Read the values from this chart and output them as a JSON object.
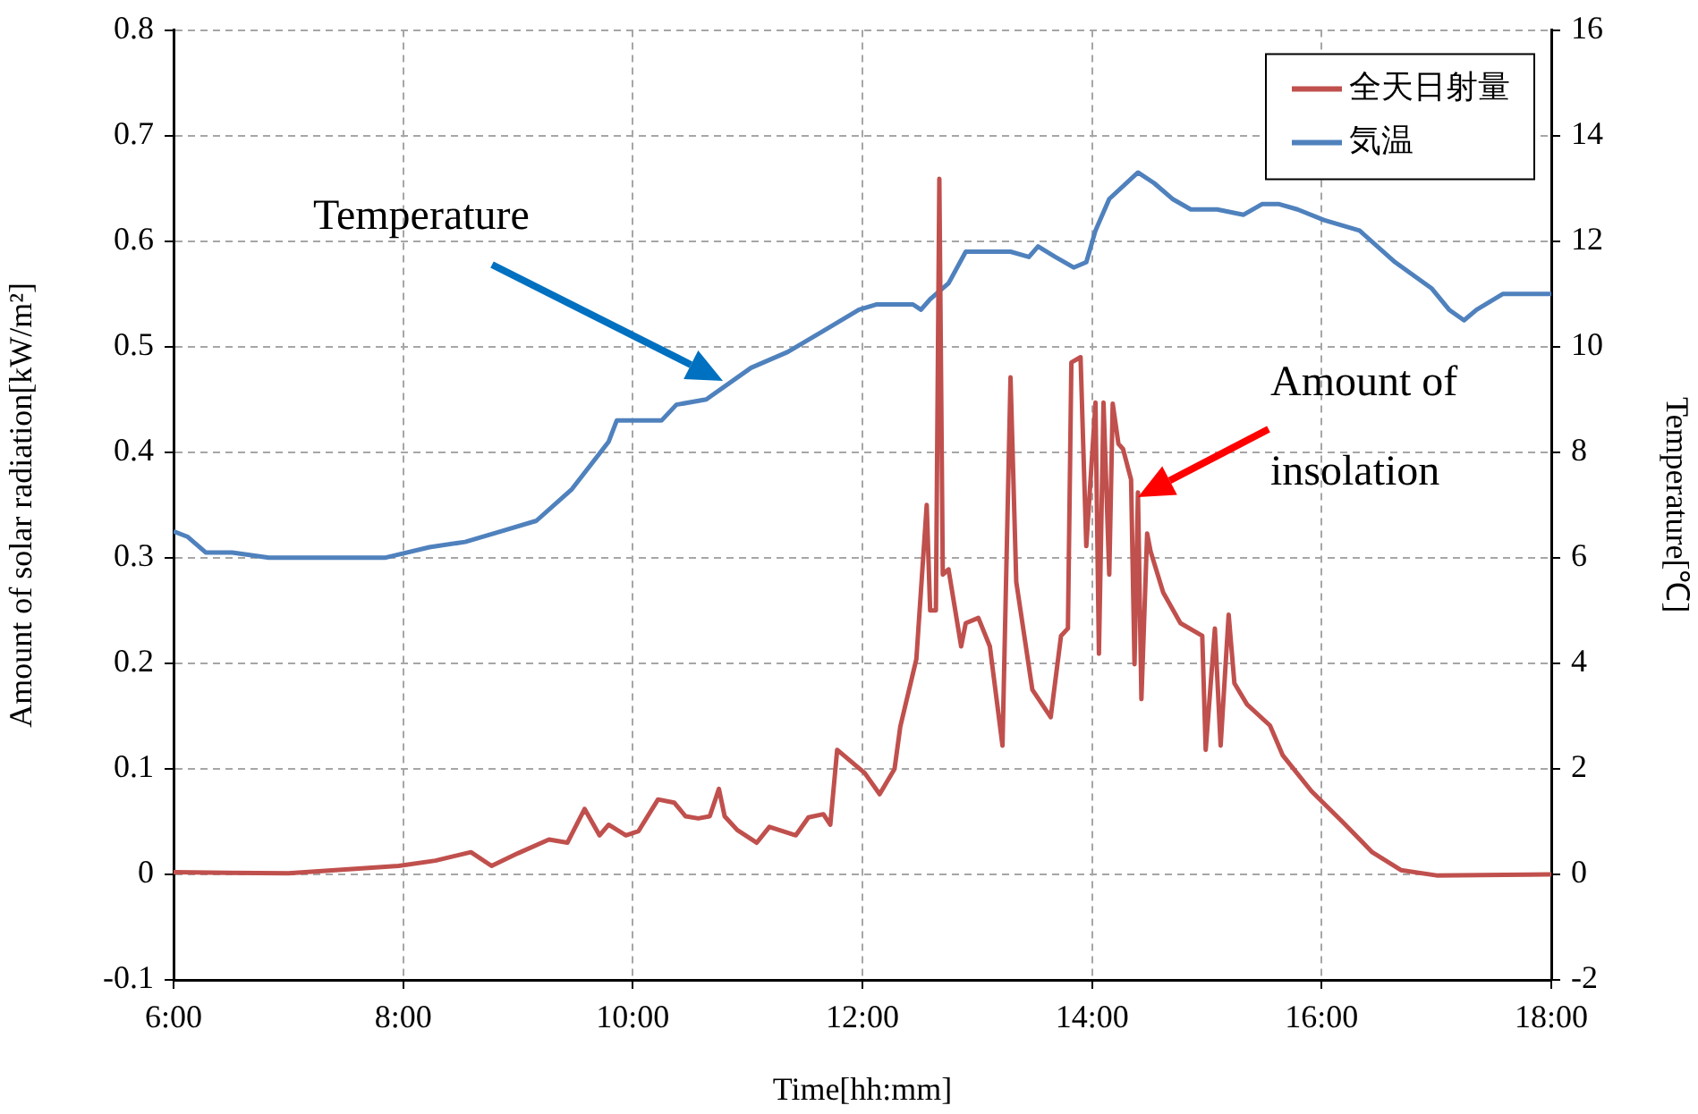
{
  "chart_data": {
    "type": "line",
    "xlabel": "Time[hh:mm]",
    "ylabel": "Amount of solar radiation[kW/m²]",
    "y2label": "Temperature[℃]",
    "xlim": [
      6,
      18
    ],
    "xticks": [
      {
        "value": 6,
        "label": "6:00"
      },
      {
        "value": 8,
        "label": "8:00"
      },
      {
        "value": 10,
        "label": "10:00"
      },
      {
        "value": 12,
        "label": "12:00"
      },
      {
        "value": 14,
        "label": "14:00"
      },
      {
        "value": 16,
        "label": "16:00"
      },
      {
        "value": 18,
        "label": "18:00"
      }
    ],
    "ylim": [
      -0.1,
      0.8
    ],
    "yticks": [
      -0.1,
      0,
      0.1,
      0.2,
      0.3,
      0.4,
      0.5,
      0.6,
      0.7,
      0.8
    ],
    "y2lim": [
      -2,
      16
    ],
    "y2ticks": [
      -2,
      0,
      2,
      4,
      6,
      8,
      10,
      12,
      14,
      16
    ],
    "grid": true,
    "legend": "top right",
    "marker": "none",
    "line_style": "solid",
    "series": [
      {
        "name": "全天日射量",
        "color": "#c0504d",
        "x": [
          6.0,
          7.0,
          7.96,
          8.28,
          8.59,
          8.77,
          9.0,
          9.27,
          9.43,
          9.58,
          9.71,
          9.79,
          9.94,
          10.05,
          10.22,
          10.36,
          10.46,
          10.57,
          10.67,
          10.75,
          10.8,
          10.91,
          11.08,
          11.19,
          11.42,
          11.53,
          11.66,
          11.72,
          11.78,
          12.02,
          12.15,
          12.28,
          12.33,
          12.47,
          12.56,
          12.59,
          12.64,
          12.67,
          12.7,
          12.75,
          12.86,
          12.9,
          13.01,
          13.11,
          13.22,
          13.29,
          13.34,
          13.48,
          13.64,
          13.73,
          13.79,
          13.82,
          13.9,
          13.95,
          14.03,
          14.06,
          14.1,
          14.15,
          14.18,
          14.23,
          14.27,
          14.34,
          14.37,
          14.4,
          14.43,
          14.48,
          14.51,
          14.62,
          14.77,
          14.96,
          14.99,
          15.07,
          15.12,
          15.19,
          15.24,
          15.35,
          15.55,
          15.66,
          15.91,
          16.18,
          16.44,
          16.69,
          17.0,
          18.0
        ],
        "values": [
          0.002,
          0.001,
          0.008,
          0.013,
          0.021,
          0.008,
          0.02,
          0.033,
          0.03,
          0.062,
          0.037,
          0.047,
          0.037,
          0.041,
          0.071,
          0.068,
          0.055,
          0.053,
          0.055,
          0.081,
          0.055,
          0.042,
          0.03,
          0.045,
          0.037,
          0.054,
          0.057,
          0.047,
          0.118,
          0.096,
          0.076,
          0.1,
          0.14,
          0.204,
          0.35,
          0.25,
          0.25,
          0.659,
          0.284,
          0.289,
          0.216,
          0.238,
          0.243,
          0.216,
          0.122,
          0.471,
          0.277,
          0.175,
          0.149,
          0.226,
          0.233,
          0.485,
          0.49,
          0.311,
          0.447,
          0.209,
          0.447,
          0.284,
          0.446,
          0.408,
          0.403,
          0.374,
          0.199,
          0.362,
          0.166,
          0.323,
          0.306,
          0.267,
          0.238,
          0.226,
          0.118,
          0.233,
          0.122,
          0.246,
          0.181,
          0.161,
          0.141,
          0.113,
          0.079,
          0.05,
          0.021,
          0.004,
          -0.001,
          0.0
        ]
      },
      {
        "name": "気温",
        "color": "#4f81bd",
        "axis": "y2",
        "x": [
          6.0,
          6.12,
          6.28,
          6.51,
          6.83,
          7.61,
          7.84,
          8.23,
          8.54,
          8.85,
          9.16,
          9.47,
          9.79,
          9.86,
          10.25,
          10.38,
          10.64,
          11.03,
          11.35,
          11.66,
          11.97,
          12.12,
          12.44,
          12.51,
          12.59,
          12.75,
          12.9,
          13.06,
          13.29,
          13.45,
          13.53,
          13.68,
          13.84,
          13.95,
          14.03,
          14.15,
          14.4,
          14.54,
          14.7,
          14.86,
          15.09,
          15.32,
          15.48,
          15.63,
          15.79,
          16.02,
          16.33,
          16.64,
          16.96,
          17.11,
          17.24,
          17.35,
          17.58,
          17.81,
          18.0
        ],
        "values": [
          6.5,
          6.4,
          6.1,
          6.1,
          6.0,
          6.0,
          6.0,
          6.2,
          6.3,
          6.5,
          6.7,
          7.3,
          8.2,
          8.6,
          8.6,
          8.9,
          9.0,
          9.6,
          9.9,
          10.3,
          10.7,
          10.8,
          10.8,
          10.7,
          10.9,
          11.2,
          11.8,
          11.8,
          11.8,
          11.7,
          11.9,
          11.7,
          11.5,
          11.6,
          12.2,
          12.8,
          13.3,
          13.1,
          12.8,
          12.6,
          12.6,
          12.5,
          12.7,
          12.7,
          12.6,
          12.4,
          12.2,
          11.6,
          11.1,
          10.7,
          10.5,
          10.7,
          11.0,
          11.0,
          11.0
        ]
      }
    ],
    "annotations": [
      "Temperature",
      "Amount of insolation"
    ]
  }
}
